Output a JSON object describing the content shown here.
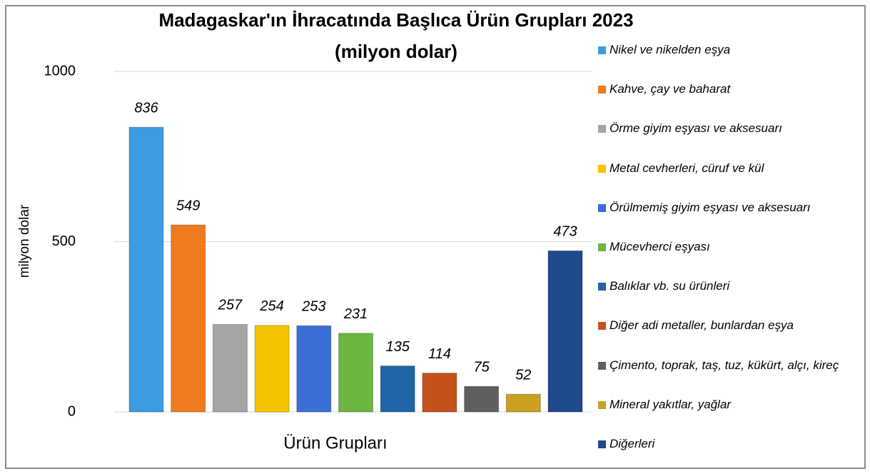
{
  "chart_data": {
    "type": "bar",
    "title": "Madagaskar'ın İhracatında Başlıca Ürün Grupları 2023",
    "subtitle": "(milyon dolar)",
    "y_label": "milyon dolar",
    "x_label": "Ürün Grupları",
    "ylim": [
      0,
      1000
    ],
    "yticks": [
      0,
      500,
      1000
    ],
    "grid": true,
    "legend": "right",
    "series": [
      {
        "name": "Nikel ve nikelden eşya",
        "color": "#3c9be3",
        "values": [
          836
        ]
      },
      {
        "name": "Kahve, çay ve baharat",
        "color": "#f07a1e",
        "values": [
          549
        ]
      },
      {
        "name": "Örme giyim eşyası ve aksesuarı",
        "color": "#a5a5a5",
        "values": [
          257
        ]
      },
      {
        "name": "Metal cevherleri, cüruf ve kül",
        "color": "#f5c400",
        "values": [
          254
        ]
      },
      {
        "name": "Örülmemiş giyim eşyası ve aksesuarı",
        "color": "#3b6fd6",
        "values": [
          253
        ]
      },
      {
        "name": "Mücevherci eşyası",
        "color": "#6ab640",
        "values": [
          231
        ]
      },
      {
        "name": "Balıklar vb. su ürünleri",
        "color": "#1f65a8",
        "values": [
          135
        ]
      },
      {
        "name": "Diğer adi metaller, bunlardan eşya",
        "color": "#c5511a",
        "values": [
          114
        ]
      },
      {
        "name": "Çimento, toprak, taş, tuz, kükürt, alçı, kireç",
        "color": "#5f5f5f",
        "values": [
          75
        ]
      },
      {
        "name": "Mineral yakıtlar, yağlar",
        "color": "#c9a020",
        "values": [
          52
        ]
      },
      {
        "name": "Diğerleri",
        "color": "#1f4a8c",
        "values": [
          473
        ]
      }
    ]
  }
}
